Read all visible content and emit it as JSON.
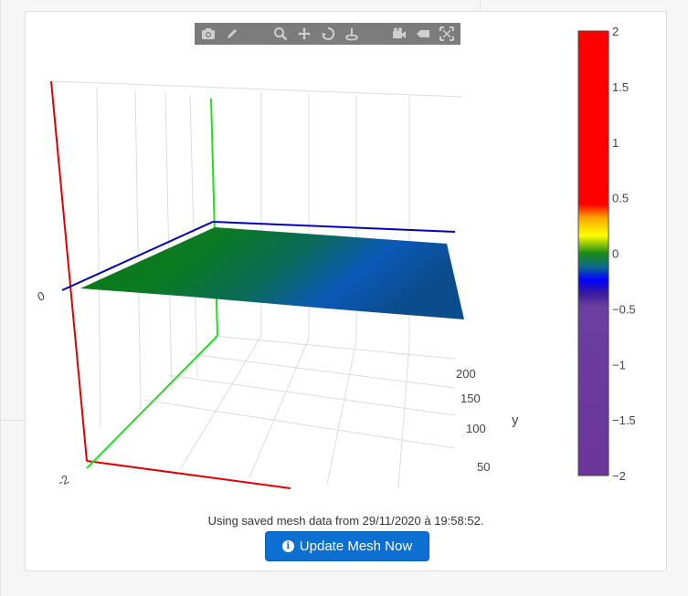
{
  "modebar": {
    "buttons": [
      {
        "name": "camera-icon",
        "title": "Download plot as a png"
      },
      {
        "name": "pencil-icon",
        "title": "Edit in Chart Studio"
      },
      {
        "name": "zoom-icon",
        "title": "Zoom"
      },
      {
        "name": "pan-icon",
        "title": "Pan"
      },
      {
        "name": "orbit-rotation-icon",
        "title": "Orbital rotation"
      },
      {
        "name": "turntable-rotation-icon",
        "title": "Turntable rotation"
      },
      {
        "name": "reset-camera-icon",
        "title": "Reset camera"
      },
      {
        "name": "hover-label-icon",
        "title": "Toggle show closest data on hover"
      },
      {
        "name": "fit-icon",
        "title": "Reset view"
      }
    ]
  },
  "chart_data": {
    "type": "surface",
    "axes": {
      "y": {
        "label": "y",
        "ticks": [
          "200",
          "150",
          "100",
          "50"
        ]
      },
      "z": {
        "ticks": [
          "0"
        ]
      },
      "x": {
        "ticks": [
          "-2"
        ]
      }
    },
    "colorbar": {
      "range": [
        -2,
        2
      ],
      "ticks": [
        "2",
        "1.5",
        "1",
        "0.5",
        "0",
        "−0.5",
        "−1",
        "−1.5",
        "−2"
      ],
      "colors": [
        "#ff0000",
        "#ff0000",
        "#ffa500",
        "#ffff00",
        "#008000",
        "#0000ff",
        "#4b0082",
        "#6a3d9a"
      ]
    },
    "axis_colors": {
      "x": "#ff0000",
      "y": "#00cc00",
      "z": "#0000cc"
    }
  },
  "status": {
    "text": "Using saved mesh data from 29/11/2020 à 19:58:52."
  },
  "update_button": {
    "label": "Update Mesh Now"
  }
}
